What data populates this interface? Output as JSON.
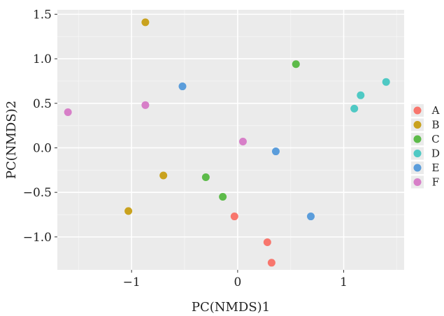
{
  "chart_data": {
    "type": "scatter",
    "title": "",
    "xlabel": "PC(NMDS)1",
    "ylabel": "PC(NMDS)2",
    "xlim": [
      -1.7,
      1.57
    ],
    "ylim": [
      -1.37,
      1.55
    ],
    "xticks": [
      -1,
      0,
      1
    ],
    "xtick_labels": [
      "−1",
      "0",
      "1"
    ],
    "yticks": [
      1.5,
      1.0,
      0.5,
      0.0,
      -0.5,
      -1.0
    ],
    "ytick_labels": [
      "1.5",
      "1.0",
      "0.5",
      "0.0",
      "−0.5",
      "−1.0"
    ],
    "grid": true,
    "background": "#ebebeb",
    "legend_position": "right",
    "series": [
      {
        "name": "A",
        "color": "#f8766d",
        "points": [
          [
            -0.03,
            -0.77
          ],
          [
            0.28,
            -1.06
          ],
          [
            0.32,
            -1.29
          ]
        ]
      },
      {
        "name": "B",
        "color": "#c9a21e",
        "points": [
          [
            -0.87,
            1.41
          ],
          [
            -0.7,
            -0.31
          ],
          [
            -1.03,
            -0.71
          ]
        ]
      },
      {
        "name": "C",
        "color": "#5dbb4a",
        "points": [
          [
            0.55,
            0.94
          ],
          [
            -0.3,
            -0.33
          ],
          [
            -0.14,
            -0.55
          ]
        ]
      },
      {
        "name": "D",
        "color": "#4fc9c4",
        "points": [
          [
            1.4,
            0.74
          ],
          [
            1.16,
            0.59
          ],
          [
            1.1,
            0.44
          ]
        ]
      },
      {
        "name": "E",
        "color": "#5b9ddb",
        "points": [
          [
            -0.52,
            0.69
          ],
          [
            0.36,
            -0.04
          ],
          [
            0.69,
            -0.77
          ]
        ]
      },
      {
        "name": "F",
        "color": "#d77fc8",
        "points": [
          [
            -1.6,
            0.4
          ],
          [
            -0.87,
            0.48
          ],
          [
            0.05,
            0.07
          ]
        ]
      }
    ]
  }
}
